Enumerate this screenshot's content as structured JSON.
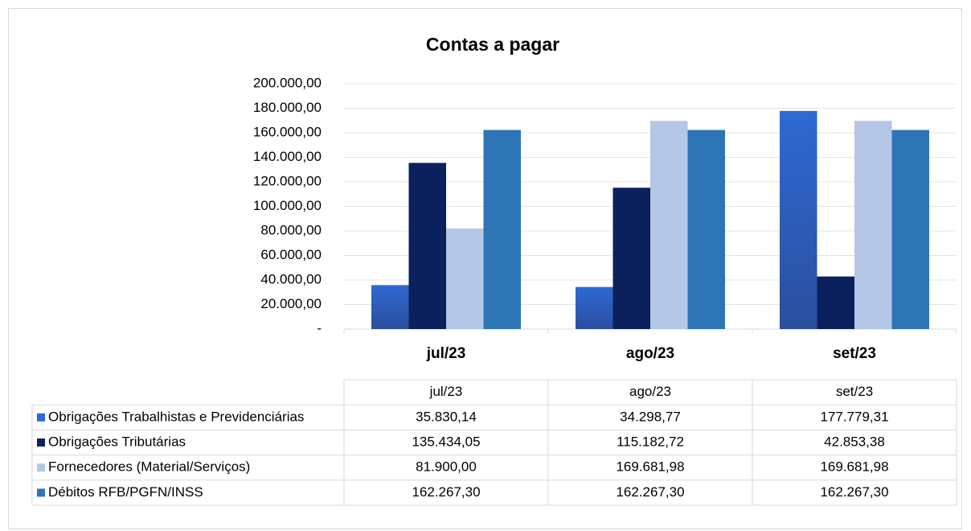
{
  "chart_data": {
    "type": "bar",
    "title": "Contas a pagar",
    "categories": [
      "jul/23",
      "ago/23",
      "set/23"
    ],
    "series": [
      {
        "name": "Obrigações Trabalhistas e Previdenciárias",
        "color": "#2f69d3",
        "values": [
          35830.14,
          34298.77,
          177779.31
        ],
        "value_labels": [
          "35.830,14",
          "34.298,77",
          "177.779,31"
        ]
      },
      {
        "name": "Obrigações Tributárias",
        "color": "#0b215e",
        "values": [
          135434.05,
          115182.72,
          42853.38
        ],
        "value_labels": [
          "135.434,05",
          "115.182,72",
          "42.853,38"
        ]
      },
      {
        "name": "Fornecedores (Material/Serviços)",
        "color": "#b4c7e7",
        "values": [
          81900.0,
          169681.98,
          169681.98
        ],
        "value_labels": [
          "81.900,00",
          "169.681,98",
          "169.681,98"
        ]
      },
      {
        "name": "Débitos RFB/PGFN/INSS",
        "color": "#2e75b6",
        "values": [
          162267.3,
          162267.3,
          162267.3
        ],
        "value_labels": [
          "162.267,30",
          "162.267,30",
          "162.267,30"
        ]
      }
    ],
    "ylim": [
      0,
      200000
    ],
    "yticks": [
      {
        "value": 0,
        "label": "-"
      },
      {
        "value": 20000,
        "label": "20.000,00"
      },
      {
        "value": 40000,
        "label": "40.000,00"
      },
      {
        "value": 60000,
        "label": "60.000,00"
      },
      {
        "value": 80000,
        "label": "80.000,00"
      },
      {
        "value": 100000,
        "label": "100.000,00"
      },
      {
        "value": 120000,
        "label": "120.000,00"
      },
      {
        "value": 140000,
        "label": "140.000,00"
      },
      {
        "value": 160000,
        "label": "160.000,00"
      },
      {
        "value": 180000,
        "label": "180.000,00"
      },
      {
        "value": 200000,
        "label": "200.000,00"
      }
    ],
    "grid": true
  }
}
